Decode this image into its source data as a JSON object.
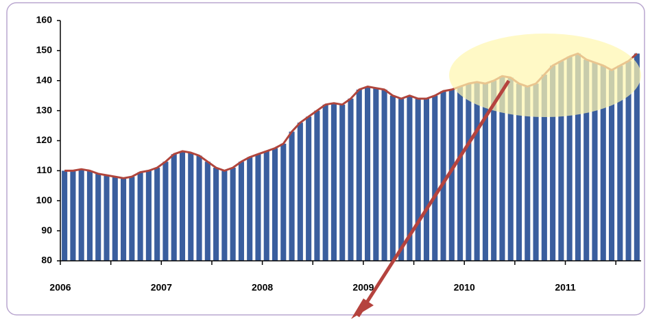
{
  "chart_data": {
    "type": "bar",
    "categories": [
      "2006",
      null,
      null,
      null,
      null,
      null,
      null,
      null,
      null,
      null,
      null,
      null,
      "2007",
      null,
      null,
      null,
      null,
      null,
      null,
      null,
      null,
      null,
      null,
      null,
      "2008",
      null,
      null,
      null,
      null,
      null,
      null,
      null,
      null,
      null,
      null,
      null,
      "2009",
      null,
      null,
      null,
      null,
      null,
      null,
      null,
      null,
      null,
      null,
      null,
      "2010",
      null,
      null,
      null,
      null,
      null,
      null,
      null,
      null,
      null,
      null,
      null,
      "2011",
      null,
      null,
      null,
      null,
      null,
      null,
      null,
      null
    ],
    "values": [
      110,
      110,
      110.5,
      110,
      109,
      108.5,
      108,
      107.5,
      108,
      109.5,
      110,
      111,
      113,
      115.5,
      116.5,
      116,
      115,
      113,
      111,
      110,
      111,
      113,
      114.5,
      115.5,
      116.5,
      117.5,
      119,
      123,
      126,
      128,
      130,
      132,
      132.5,
      132,
      134,
      137,
      138,
      137.5,
      137,
      135,
      134,
      135,
      134,
      134,
      135,
      136.5,
      137,
      138,
      139,
      139.5,
      139,
      140,
      141.5,
      141,
      139,
      138,
      139,
      142,
      145,
      146.5,
      148,
      149,
      147,
      146,
      145,
      143.5,
      145,
      146.5,
      149
    ],
    "color": "#3a5e9e",
    "line_color": "#b0453c",
    "ylim": [
      80,
      160
    ],
    "yticks": [
      80,
      90,
      100,
      110,
      120,
      130,
      140,
      150,
      160
    ]
  }
}
